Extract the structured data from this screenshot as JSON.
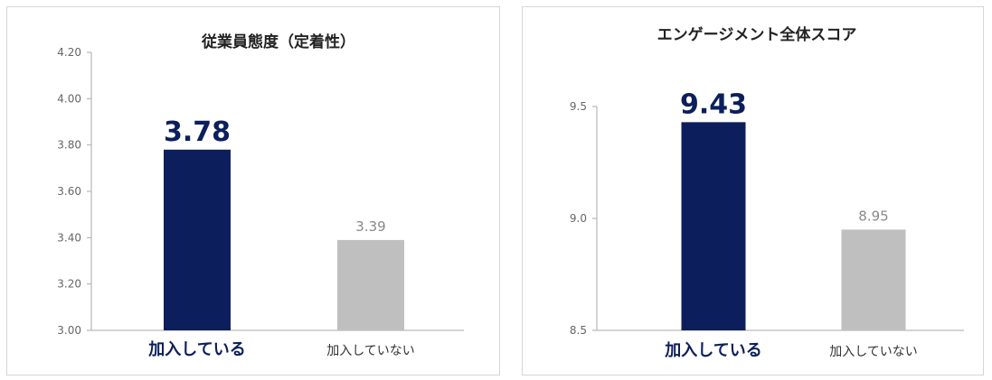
{
  "colors": {
    "highlight": "#0c1f5c",
    "other": "#bfbfbf",
    "other_label": "#888888",
    "axis": "#aaaaaa"
  },
  "chart_data": [
    {
      "type": "bar",
      "title": "従業員態度（定着性）",
      "categories": [
        "加入している",
        "加入していない"
      ],
      "values": [
        3.78,
        3.39
      ],
      "value_labels": [
        "3.78",
        "3.39"
      ],
      "yticks": [
        "4.20",
        "4.00",
        "3.80",
        "3.60",
        "3.40",
        "3.20",
        "3.00"
      ],
      "ylim": [
        3.0,
        4.2
      ],
      "grid": false,
      "xlabel": "",
      "ylabel": ""
    },
    {
      "type": "bar",
      "title": "エンゲージメント全体スコア",
      "categories": [
        "加入している",
        "加入していない"
      ],
      "values": [
        9.43,
        8.95
      ],
      "value_labels": [
        "9.43",
        "8.95"
      ],
      "yticks": [
        "9.5",
        "9.0",
        "8.5"
      ],
      "ylim": [
        8.5,
        9.5
      ],
      "grid": false,
      "xlabel": "",
      "ylabel": ""
    }
  ]
}
